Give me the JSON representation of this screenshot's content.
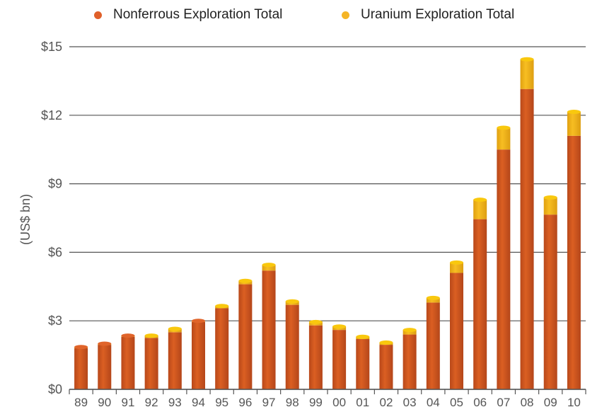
{
  "chart_data": {
    "type": "bar",
    "stacked": true,
    "title": "",
    "xlabel": "",
    "ylabel": "(US$ bn)",
    "ylim": [
      0,
      15
    ],
    "yticks": [
      0,
      3,
      6,
      9,
      12,
      15
    ],
    "ytick_labels": [
      "$0",
      "$3",
      "$6",
      "$9",
      "$12",
      "$15"
    ],
    "grid": true,
    "legend_position": "top-center",
    "categories": [
      "89",
      "90",
      "91",
      "92",
      "93",
      "94",
      "95",
      "96",
      "97",
      "98",
      "99",
      "00",
      "01",
      "02",
      "03",
      "04",
      "05",
      "06",
      "07",
      "08",
      "09",
      "10"
    ],
    "series": [
      {
        "name": "Nonferrous Exploration Total",
        "color": "#d35a1e",
        "values": [
          1.8,
          1.95,
          2.3,
          2.25,
          2.5,
          2.95,
          3.55,
          4.6,
          5.2,
          3.7,
          2.8,
          2.6,
          2.2,
          1.95,
          2.4,
          3.8,
          5.1,
          7.45,
          10.5,
          13.15,
          7.65,
          11.1
        ]
      },
      {
        "name": "Uranium Exploration Total",
        "color": "#f2b31a",
        "values": [
          0.05,
          0.05,
          0.05,
          0.1,
          0.15,
          0.05,
          0.1,
          0.15,
          0.25,
          0.15,
          0.15,
          0.15,
          0.1,
          0.1,
          0.2,
          0.2,
          0.45,
          0.85,
          0.95,
          1.3,
          0.75,
          1.05
        ]
      }
    ]
  }
}
